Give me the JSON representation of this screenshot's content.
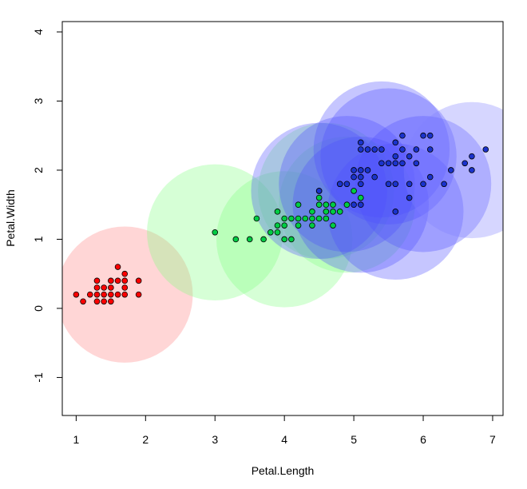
{
  "chart_data": {
    "type": "scatter",
    "xlabel": "Petal.Length",
    "ylabel": "Petal.Width",
    "xlim": [
      0.8,
      7.15
    ],
    "ylim": [
      -1.55,
      4.15
    ],
    "x_ticks": [
      1,
      2,
      3,
      4,
      5,
      6,
      7
    ],
    "y_ticks": [
      -1,
      0,
      1,
      2,
      3,
      4
    ],
    "grid": false,
    "series": [
      {
        "color": "#ff0000",
        "points": [
          [
            1.0,
            0.2
          ],
          [
            1.1,
            0.1
          ],
          [
            1.2,
            0.2
          ],
          [
            1.3,
            0.2
          ],
          [
            1.3,
            0.3
          ],
          [
            1.3,
            0.4
          ],
          [
            1.3,
            0.1
          ],
          [
            1.4,
            0.2
          ],
          [
            1.4,
            0.3
          ],
          [
            1.4,
            0.1
          ],
          [
            1.5,
            0.2
          ],
          [
            1.5,
            0.4
          ],
          [
            1.5,
            0.1
          ],
          [
            1.5,
            0.3
          ],
          [
            1.6,
            0.2
          ],
          [
            1.6,
            0.4
          ],
          [
            1.6,
            0.6
          ],
          [
            1.7,
            0.2
          ],
          [
            1.7,
            0.3
          ],
          [
            1.7,
            0.4
          ],
          [
            1.7,
            0.5
          ],
          [
            1.9,
            0.2
          ],
          [
            1.9,
            0.4
          ]
        ]
      },
      {
        "color": "#00cc44",
        "points": [
          [
            3.0,
            1.1
          ],
          [
            3.3,
            1.0
          ],
          [
            3.5,
            1.0
          ],
          [
            3.6,
            1.3
          ],
          [
            3.7,
            1.0
          ],
          [
            3.8,
            1.1
          ],
          [
            3.9,
            1.1
          ],
          [
            3.9,
            1.2
          ],
          [
            3.9,
            1.4
          ],
          [
            4.0,
            1.0
          ],
          [
            4.0,
            1.2
          ],
          [
            4.0,
            1.3
          ],
          [
            4.1,
            1.0
          ],
          [
            4.1,
            1.3
          ],
          [
            4.2,
            1.2
          ],
          [
            4.2,
            1.3
          ],
          [
            4.2,
            1.5
          ],
          [
            4.3,
            1.3
          ],
          [
            4.4,
            1.2
          ],
          [
            4.4,
            1.3
          ],
          [
            4.4,
            1.4
          ],
          [
            4.5,
            1.3
          ],
          [
            4.5,
            1.5
          ],
          [
            4.5,
            1.6
          ],
          [
            4.5,
            1.7
          ],
          [
            4.6,
            1.3
          ],
          [
            4.6,
            1.4
          ],
          [
            4.6,
            1.5
          ],
          [
            4.7,
            1.2
          ],
          [
            4.7,
            1.4
          ],
          [
            4.7,
            1.5
          ],
          [
            4.8,
            1.4
          ],
          [
            4.8,
            1.8
          ],
          [
            4.9,
            1.5
          ],
          [
            5.0,
            1.7
          ],
          [
            5.1,
            1.6
          ]
        ]
      },
      {
        "color": "#1a33cc",
        "points": [
          [
            4.5,
            1.7
          ],
          [
            4.8,
            1.8
          ],
          [
            4.9,
            1.8
          ],
          [
            5.0,
            1.5
          ],
          [
            5.0,
            1.9
          ],
          [
            5.0,
            2.0
          ],
          [
            5.1,
            1.5
          ],
          [
            5.1,
            1.8
          ],
          [
            5.1,
            1.9
          ],
          [
            5.1,
            2.0
          ],
          [
            5.1,
            2.3
          ],
          [
            5.1,
            2.4
          ],
          [
            5.2,
            2.0
          ],
          [
            5.2,
            2.3
          ],
          [
            5.3,
            1.9
          ],
          [
            5.3,
            2.3
          ],
          [
            5.4,
            2.1
          ],
          [
            5.4,
            2.3
          ],
          [
            5.5,
            1.8
          ],
          [
            5.5,
            2.1
          ],
          [
            5.6,
            1.4
          ],
          [
            5.6,
            1.8
          ],
          [
            5.6,
            2.1
          ],
          [
            5.6,
            2.2
          ],
          [
            5.6,
            2.4
          ],
          [
            5.7,
            2.1
          ],
          [
            5.7,
            2.3
          ],
          [
            5.7,
            2.5
          ],
          [
            5.8,
            1.6
          ],
          [
            5.8,
            1.8
          ],
          [
            5.8,
            2.2
          ],
          [
            5.9,
            2.1
          ],
          [
            5.9,
            2.3
          ],
          [
            6.0,
            1.8
          ],
          [
            6.0,
            2.5
          ],
          [
            6.1,
            1.9
          ],
          [
            6.1,
            2.3
          ],
          [
            6.1,
            2.5
          ],
          [
            6.3,
            1.8
          ],
          [
            6.4,
            2.0
          ],
          [
            6.6,
            2.1
          ],
          [
            6.7,
            2.0
          ],
          [
            6.7,
            2.2
          ],
          [
            6.9,
            2.3
          ]
        ]
      }
    ],
    "circles": [
      {
        "cx": 1.7,
        "cy": 0.2,
        "r": 0.98,
        "fill": "#ff8080",
        "opacity": 0.32
      },
      {
        "cx": 3.0,
        "cy": 1.1,
        "r": 0.98,
        "fill": "#80ff80",
        "opacity": 0.32
      },
      {
        "cx": 4.0,
        "cy": 1.0,
        "r": 0.98,
        "fill": "#80ff80",
        "opacity": 0.32
      },
      {
        "cx": 4.9,
        "cy": 1.5,
        "r": 0.98,
        "fill": "#80ff80",
        "opacity": 0.32
      },
      {
        "cx": 4.6,
        "cy": 1.7,
        "r": 0.98,
        "fill": "#80ff80",
        "opacity": 0.32
      },
      {
        "cx": 4.5,
        "cy": 1.7,
        "r": 0.98,
        "fill": "#4d4dff",
        "opacity": 0.32
      },
      {
        "cx": 4.9,
        "cy": 1.8,
        "r": 0.98,
        "fill": "#4d4dff",
        "opacity": 0.32
      },
      {
        "cx": 5.1,
        "cy": 1.5,
        "r": 0.98,
        "fill": "#4d4dff",
        "opacity": 0.32
      },
      {
        "cx": 5.6,
        "cy": 1.4,
        "r": 0.98,
        "fill": "#4d4dff",
        "opacity": 0.32
      },
      {
        "cx": 6.0,
        "cy": 1.8,
        "r": 0.98,
        "fill": "#4d4dff",
        "opacity": 0.32
      },
      {
        "cx": 5.4,
        "cy": 2.3,
        "r": 0.98,
        "fill": "#4d4dff",
        "opacity": 0.32
      },
      {
        "cx": 5.5,
        "cy": 2.2,
        "r": 0.98,
        "fill": "#4d4dff",
        "opacity": 0.32
      },
      {
        "cx": 6.7,
        "cy": 2.0,
        "r": 0.98,
        "fill": "#8080ff",
        "opacity": 0.32
      }
    ]
  }
}
